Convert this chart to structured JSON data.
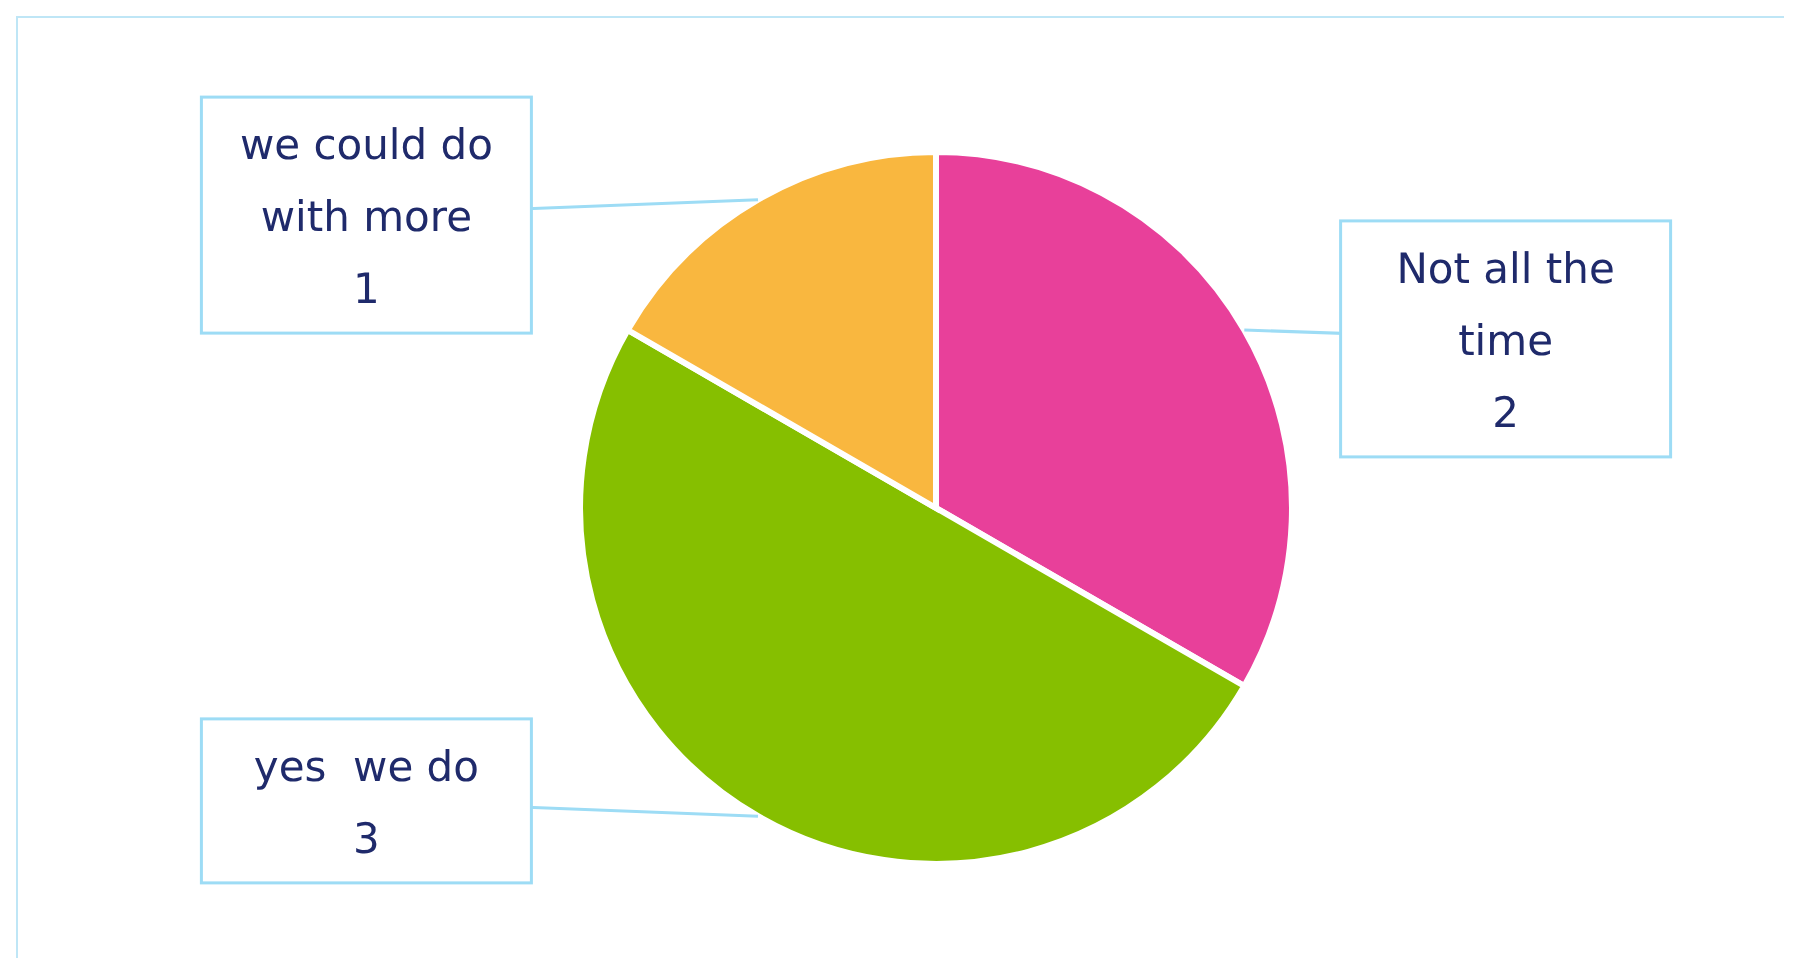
{
  "chart_data": {
    "type": "pie",
    "categories": [
      "Not all the time",
      "yes  we do",
      "we could do with more"
    ],
    "values": [
      2,
      3,
      1
    ],
    "colors": [
      "#e8409a",
      "#86bf00",
      "#f9b73f"
    ],
    "data_labels": true
  }
}
